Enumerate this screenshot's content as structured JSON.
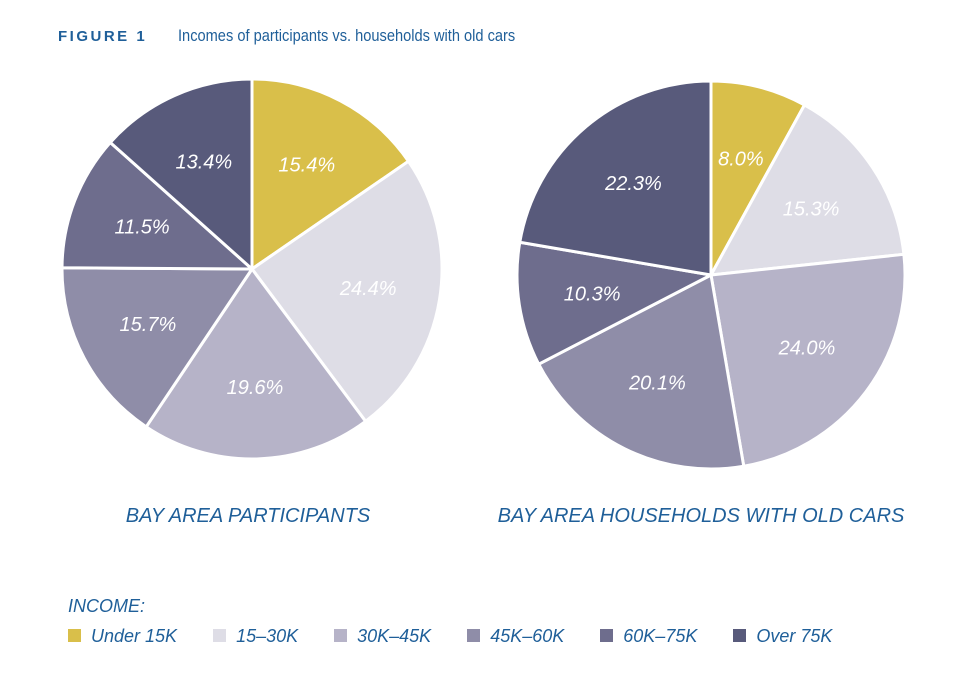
{
  "figure": {
    "label": "FIGURE 1",
    "title": "Incomes of participants vs. households with old cars"
  },
  "legend": {
    "title": "INCOME:",
    "items": [
      {
        "label": "Under 15K",
        "color": "#d9bf4a"
      },
      {
        "label": "15–30K",
        "color": "#dedde6"
      },
      {
        "label": "30K–45K",
        "color": "#b6b3c8"
      },
      {
        "label": "45K–60K",
        "color": "#8f8da8"
      },
      {
        "label": "60K–75K",
        "color": "#6e6d8d"
      },
      {
        "label": "Over 75K",
        "color": "#585a7b"
      }
    ]
  },
  "chart_data": [
    {
      "type": "pie",
      "title": "BAY AREA PARTICIPANTS",
      "slices": [
        {
          "category": "Under 15K",
          "value": 15.4,
          "label": "15.4%"
        },
        {
          "category": "15–30K",
          "value": 24.4,
          "label": "24.4%"
        },
        {
          "category": "30K–45K",
          "value": 19.6,
          "label": "19.6%"
        },
        {
          "category": "45K–60K",
          "value": 15.7,
          "label": "15.7%"
        },
        {
          "category": "60K–75K",
          "value": 11.5,
          "label": "11.5%"
        },
        {
          "category": "Over 75K",
          "value": 13.4,
          "label": "13.4%"
        }
      ]
    },
    {
      "type": "pie",
      "title": "BAY AREA HOUSEHOLDS WITH OLD CARS",
      "slices": [
        {
          "category": "Under 15K",
          "value": 8.0,
          "label": "8.0%"
        },
        {
          "category": "15–30K",
          "value": 15.3,
          "label": "15.3%"
        },
        {
          "category": "30K–45K",
          "value": 24.0,
          "label": "24.0%"
        },
        {
          "category": "45K–60K",
          "value": 20.1,
          "label": "20.1%"
        },
        {
          "category": "60K–75K",
          "value": 10.3,
          "label": "10.3%"
        },
        {
          "category": "Over 75K",
          "value": 22.3,
          "label": "22.3%"
        }
      ]
    }
  ]
}
